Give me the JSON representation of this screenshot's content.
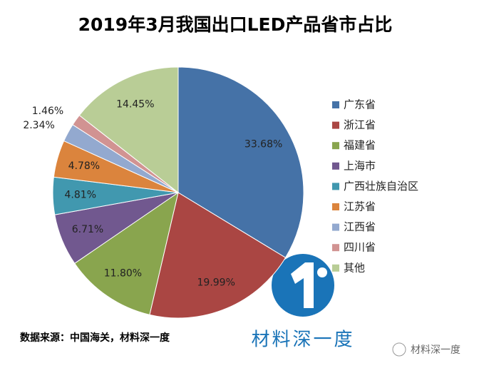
{
  "chart_data": {
    "type": "pie",
    "title": "2019年3月我国出口LED产品省市占比",
    "categories": [
      "广东省",
      "浙江省",
      "福建省",
      "上海市",
      "广西壮族自治区",
      "江苏省",
      "江西省",
      "四川省",
      "其他"
    ],
    "values": [
      33.68,
      19.99,
      11.8,
      6.71,
      4.81,
      4.78,
      2.34,
      1.46,
      14.45
    ],
    "value_labels": [
      "33.68%",
      "19.99%",
      "11.80%",
      "6.71%",
      "4.81%",
      "4.78%",
      "2.34%",
      "1.46%",
      "14.45%"
    ],
    "colors": [
      "#4572a7",
      "#aa4643",
      "#89a54e",
      "#71588f",
      "#4198af",
      "#db843d",
      "#93a9cf",
      "#d19392",
      "#b9cd96"
    ],
    "legend": "right"
  },
  "source": "数据来源：中国海关，材料深一度",
  "logo_text": "材料深一度",
  "watermark": "材料深一度"
}
